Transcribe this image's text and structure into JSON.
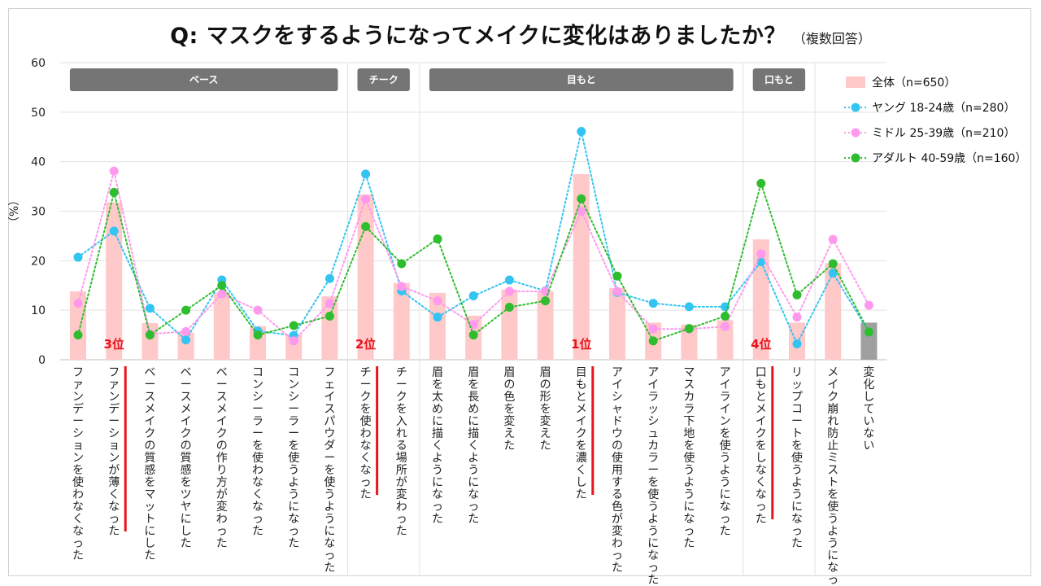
{
  "title": "Q:  マスクをするようになってメイクに変化はありましたか？",
  "title_note": "（複数回答）",
  "chart_data": {
    "type": "bar",
    "title": "Q:  マスクをするようになってメイクに変化はありましたか？",
    "ylabel": "（%）",
    "ylim": [
      0,
      60
    ],
    "yticks": [
      "0",
      "10",
      "20",
      "30",
      "40",
      "50",
      "60"
    ],
    "categories": [
      "ファンデーションを使わなくなった",
      "ファンデーションが薄くなった",
      "ベースメイクの質感をマットにした",
      "ベースメイクの質感をツヤにした",
      "ベースメイクの作り方が変わった",
      "コンシーラーを使わなくなった",
      "コンシーラーを使うようになった",
      "フェイスパウダーを使うようになった",
      "チークを使わなくなった",
      "チークを入れる場所が変わった",
      "眉を太めに描くようになった",
      "眉を長めに描くようになった",
      "眉の色を変えた",
      "眉の形を変えた",
      "目もとメイクを濃くした",
      "アイシャドウの使用する色が変わった",
      "アイラッシュカラーを使うようになった",
      "マスカラ下地を使うようになった",
      "アイラインを使うようになった",
      "口もとメイクをしなくなった",
      "リップコートを使うようになった",
      "メイク崩れ防止ミストを使うようになった",
      "変化していない"
    ],
    "groups": [
      {
        "label": "ベース",
        "start": 0,
        "end": 7
      },
      {
        "label": "チーク",
        "start": 8,
        "end": 9
      },
      {
        "label": "目もと",
        "start": 10,
        "end": 18
      },
      {
        "label": "口もと",
        "start": 19,
        "end": 20
      }
    ],
    "series": [
      {
        "name": "全体（n=650）",
        "type": "bar",
        "color": "#ffc9c9",
        "values": [
          13.8,
          31.8,
          7.4,
          5.5,
          13.5,
          6.8,
          5.1,
          12.8,
          33.4,
          15.5,
          13.5,
          8.9,
          14.2,
          13.8,
          37.5,
          14.5,
          7.5,
          7.1,
          8.0,
          24.3,
          7.5,
          19.5,
          7.5
        ],
        "highlight_index": 22,
        "highlight_color": "#a0a0a0"
      },
      {
        "name": "ヤング 18-24歳（n=280）",
        "type": "line",
        "color": "#33c4f2",
        "values": [
          20.7,
          26.0,
          10.4,
          4.0,
          16.1,
          5.8,
          4.9,
          16.4,
          37.5,
          13.9,
          8.6,
          12.9,
          16.1,
          13.9,
          46.1,
          13.6,
          11.4,
          10.7,
          10.7,
          19.8,
          3.2,
          17.5,
          5.6
        ]
      },
      {
        "name": "ミドル 25-39歳（n=210）",
        "type": "line",
        "color": "#ff99ee",
        "values": [
          11.4,
          38.1,
          5.2,
          5.7,
          13.3,
          10.0,
          3.8,
          11.4,
          32.4,
          14.8,
          11.9,
          7.1,
          13.8,
          13.8,
          30.0,
          13.8,
          6.2,
          6.2,
          6.7,
          21.4,
          8.6,
          24.3,
          11.0
        ]
      },
      {
        "name": "アダルト 40-59歳（n=160）",
        "type": "line",
        "color": "#2ebd2e",
        "values": [
          5.0,
          33.8,
          5.0,
          10.0,
          15.0,
          5.0,
          6.9,
          8.8,
          26.9,
          19.4,
          24.4,
          5.0,
          10.6,
          11.9,
          32.5,
          16.9,
          3.8,
          6.3,
          8.8,
          35.6,
          13.1,
          19.4,
          5.6
        ]
      }
    ],
    "ranks": [
      {
        "label": "3位",
        "index": 1
      },
      {
        "label": "2位",
        "index": 8
      },
      {
        "label": "1位",
        "index": 14
      },
      {
        "label": "4位",
        "index": 19
      }
    ],
    "legend": "top-right"
  }
}
